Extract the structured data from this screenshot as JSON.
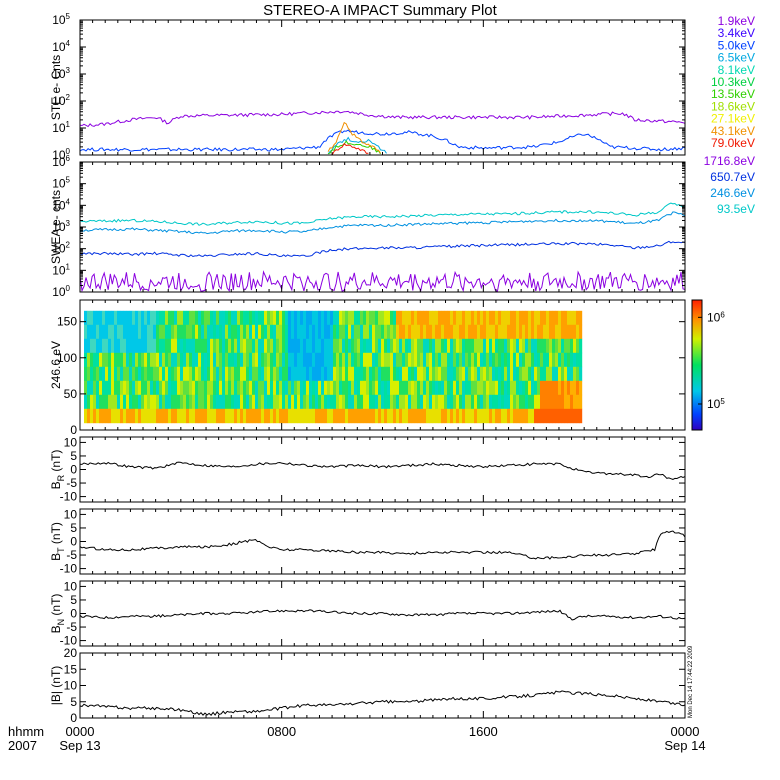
{
  "title": "STEREO-A IMPACT Summary Plot",
  "x_axis": {
    "row_label": [
      "hhmm",
      "2007"
    ],
    "ticks": [
      {
        "hour": 0,
        "label": "0000",
        "date": "Sep 13"
      },
      {
        "hour": 8,
        "label": "0800",
        "date": ""
      },
      {
        "hour": 16,
        "label": "1600",
        "date": ""
      },
      {
        "hour": 24,
        "label": "0000",
        "date": "Sep 14"
      }
    ],
    "range_hours": [
      0,
      24
    ]
  },
  "stamp": "Mon Dec 14 17:44:22 2009",
  "chart_data": [
    {
      "type": "line",
      "ylabel": "STE e- Cnts",
      "yscale": "log",
      "ylim_exp": [
        0,
        5
      ],
      "yticks": [
        {
          "e": 0,
          "b": "10",
          "s": "0"
        },
        {
          "e": 1,
          "b": "10",
          "s": "1"
        },
        {
          "e": 2,
          "b": "10",
          "s": "2"
        },
        {
          "e": 3,
          "b": "10",
          "s": "3"
        },
        {
          "e": 4,
          "b": "10",
          "s": "4"
        },
        {
          "e": 5,
          "b": "10",
          "s": "5"
        }
      ],
      "legend": [
        {
          "label": "1.9keV",
          "color": "#8b00e0"
        },
        {
          "label": "3.4keV",
          "color": "#3a00ff"
        },
        {
          "label": "5.0keV",
          "color": "#0040ff"
        },
        {
          "label": "6.5keV",
          "color": "#00a8e0"
        },
        {
          "label": "8.1keV",
          "color": "#00d8b0"
        },
        {
          "label": "10.3keV",
          "color": "#00d040"
        },
        {
          "label": "13.5keV",
          "color": "#30d000"
        },
        {
          "label": "18.6keV",
          "color": "#a0e000"
        },
        {
          "label": "27.1keV",
          "color": "#f0f000"
        },
        {
          "label": "43.1keV",
          "color": "#f09000"
        },
        {
          "label": "79.0keV",
          "color": "#f01800"
        }
      ],
      "series": [
        {
          "color": "#8b00e0",
          "x": [
            0,
            1,
            2,
            3,
            3.5,
            4,
            6,
            8,
            9.5,
            10.5,
            11.5,
            12.5,
            14,
            16,
            18,
            20,
            21.5,
            22,
            23,
            24
          ],
          "y": [
            12,
            14,
            20,
            25,
            15,
            28,
            30,
            32,
            38,
            42,
            30,
            25,
            25,
            25,
            25,
            30,
            35,
            20,
            18,
            16
          ]
        },
        {
          "color": "#0040ff",
          "x": [
            0,
            4,
            8,
            9.5,
            10,
            10.5,
            11,
            12,
            13,
            14,
            15,
            16,
            18,
            19,
            20,
            21,
            22,
            23,
            24
          ],
          "y": [
            1.6,
            1.6,
            1.6,
            2,
            5,
            8,
            7,
            6,
            7,
            5,
            2,
            1.8,
            2,
            3,
            6,
            2,
            1.8,
            1.6,
            1.8
          ]
        },
        {
          "color": "#00a8e0",
          "x": [
            9.8,
            10.2,
            10.6,
            11,
            11.4,
            11.8,
            12.2
          ],
          "y": [
            1,
            2.5,
            4,
            3,
            3.5,
            2,
            1
          ]
        },
        {
          "color": "#30d000",
          "x": [
            9.8,
            10.2,
            10.6,
            11,
            11.5,
            12
          ],
          "y": [
            1,
            2,
            3,
            2.5,
            2,
            1
          ]
        },
        {
          "color": "#f09000",
          "x": [
            9.8,
            10.2,
            10.5,
            10.8,
            11.2,
            11.6,
            12
          ],
          "y": [
            1,
            3,
            15,
            6,
            3,
            2,
            1
          ]
        },
        {
          "color": "#f01800",
          "x": [
            10,
            10.5,
            11,
            11.5
          ],
          "y": [
            1,
            2.5,
            1.8,
            1
          ]
        }
      ]
    },
    {
      "type": "line",
      "ylabel": "SWEA e- cnts",
      "yscale": "log",
      "ylim_exp": [
        0,
        6
      ],
      "yticks": [
        {
          "e": 0,
          "b": "10",
          "s": "0"
        },
        {
          "e": 1,
          "b": "10",
          "s": "1"
        },
        {
          "e": 2,
          "b": "10",
          "s": "2"
        },
        {
          "e": 3,
          "b": "10",
          "s": "3"
        },
        {
          "e": 4,
          "b": "10",
          "s": "4"
        },
        {
          "e": 5,
          "b": "10",
          "s": "5"
        },
        {
          "e": 6,
          "b": "10",
          "s": "6"
        }
      ],
      "legend": [
        {
          "label": "1716.8eV",
          "color": "#8b00e0"
        },
        {
          "label": "650.7eV",
          "color": "#0030e0"
        },
        {
          "label": "246.6eV",
          "color": "#0090e0"
        },
        {
          "label": "93.5eV",
          "color": "#00c8c8"
        }
      ],
      "series": [
        {
          "color": "#00c8c8",
          "x": [
            0,
            1,
            2,
            3,
            4,
            5,
            6,
            7,
            8,
            9,
            10,
            11,
            12,
            13,
            14,
            15,
            16,
            17,
            18,
            19,
            20,
            21,
            22,
            23,
            23.5,
            24
          ],
          "y": [
            1800,
            1900,
            2000,
            1800,
            1500,
            1300,
            1600,
            1800,
            1500,
            1500,
            2500,
            3000,
            3000,
            3200,
            3500,
            3800,
            4000,
            4000,
            4500,
            5000,
            5000,
            4500,
            3500,
            5000,
            12000,
            9000
          ]
        },
        {
          "color": "#0090e0",
          "x": [
            0,
            1,
            2,
            3,
            4,
            5,
            6,
            7,
            8,
            9,
            10,
            11,
            12,
            13,
            14,
            15,
            16,
            17,
            18,
            19,
            20,
            21,
            22,
            23,
            23.5,
            24
          ],
          "y": [
            700,
            750,
            800,
            700,
            600,
            500,
            650,
            700,
            600,
            600,
            1000,
            1200,
            1200,
            1300,
            1400,
            1500,
            1600,
            1700,
            1900,
            2000,
            2000,
            1800,
            1400,
            2000,
            4500,
            3500
          ]
        },
        {
          "color": "#0030e0",
          "x": [
            0,
            1,
            2,
            3,
            4,
            5,
            6,
            7,
            8,
            9,
            10,
            11,
            12,
            13,
            14,
            15,
            16,
            17,
            18,
            19,
            20,
            21,
            22,
            23,
            23.5,
            24
          ],
          "y": [
            60,
            60,
            55,
            60,
            50,
            45,
            55,
            60,
            45,
            45,
            90,
            100,
            110,
            110,
            120,
            130,
            140,
            150,
            160,
            170,
            170,
            150,
            110,
            140,
            220,
            180
          ]
        },
        {
          "color": "#8b00e0",
          "x": [
            0,
            4,
            8,
            12,
            16,
            20,
            24
          ],
          "y": [
            3,
            3,
            3,
            3,
            3,
            3,
            3
          ]
        }
      ]
    },
    {
      "type": "heatmap",
      "ylabel": "246.6 eV",
      "ylim": [
        0,
        180
      ],
      "yticks": [
        0,
        50,
        100,
        150
      ],
      "color_scale": {
        "ticks": [
          {
            "e": 5,
            "b": "10",
            "s": "5"
          },
          {
            "e": 6,
            "b": "10",
            "s": "6"
          }
        ],
        "range_exp": [
          4.7,
          6.2
        ]
      },
      "x_range_hours": [
        0,
        19.9
      ]
    },
    {
      "type": "line",
      "ylabel": "B",
      "ylabel_sub": "R",
      "ylabel_unit": " (nT)",
      "ylim": [
        -12,
        12
      ],
      "yticks": [
        -10,
        -5,
        0,
        5,
        10
      ],
      "series": [
        {
          "color": "#000000",
          "x": [
            0,
            1,
            2,
            3,
            4,
            5,
            6,
            7,
            8,
            9,
            10,
            11,
            12,
            13,
            14,
            15,
            16,
            17,
            18,
            19,
            20,
            21,
            22,
            22.5,
            23,
            23.5,
            24
          ],
          "y": [
            2,
            2.5,
            1,
            0.5,
            2.5,
            1.5,
            1,
            2,
            2.5,
            1.5,
            1,
            1.5,
            1,
            1.5,
            2,
            1.5,
            1,
            1.5,
            2,
            2,
            -1,
            -1.5,
            -2,
            -3,
            -1.5,
            -4,
            -2.5
          ]
        }
      ]
    },
    {
      "type": "line",
      "ylabel": "B",
      "ylabel_sub": "T",
      "ylabel_unit": " (nT)",
      "ylim": [
        -12,
        12
      ],
      "yticks": [
        -10,
        -5,
        0,
        5,
        10
      ],
      "series": [
        {
          "color": "#000000",
          "x": [
            0,
            1,
            2,
            3,
            4,
            5,
            6,
            6.5,
            7,
            7.5,
            8,
            9,
            10,
            11,
            12,
            13,
            14,
            15,
            16,
            17,
            18,
            19,
            20,
            21,
            22,
            22.8,
            23,
            23.5,
            24
          ],
          "y": [
            -2,
            -3,
            -3,
            -2.5,
            -2,
            -2,
            -1,
            0,
            0.5,
            -2,
            -3,
            -3,
            -3.5,
            -4,
            -4,
            -4.5,
            -4,
            -4,
            -4,
            -4,
            -6,
            -6,
            -5,
            -5,
            -4.5,
            -3,
            3,
            4,
            2
          ]
        }
      ]
    },
    {
      "type": "line",
      "ylabel": "B",
      "ylabel_sub": "N",
      "ylabel_unit": " (nT)",
      "ylim": [
        -12,
        12
      ],
      "yticks": [
        -10,
        -5,
        0,
        5,
        10
      ],
      "series": [
        {
          "color": "#000000",
          "x": [
            0,
            1,
            2,
            3,
            4,
            5,
            6,
            7,
            8,
            9,
            10,
            11,
            12,
            13,
            14,
            15,
            16,
            17,
            18,
            19,
            19.5,
            20,
            21,
            22,
            23,
            24
          ],
          "y": [
            -1,
            -1.5,
            -1,
            -1,
            -0.5,
            0,
            0,
            0.5,
            1,
            1,
            0.5,
            0,
            0,
            -0.5,
            -0.5,
            0,
            0,
            0,
            0.5,
            1,
            -2,
            -1,
            -1,
            -1.5,
            -1,
            -2
          ]
        }
      ]
    },
    {
      "type": "line",
      "ylabel": "|B|",
      "ylabel_sub": "",
      "ylabel_unit": " (nT)",
      "ylim": [
        0,
        20
      ],
      "yticks": [
        0,
        5,
        10,
        15,
        20
      ],
      "series": [
        {
          "color": "#000000",
          "x": [
            0,
            1,
            2,
            3,
            4,
            5,
            6,
            7,
            8,
            9,
            10,
            11,
            12,
            13,
            14,
            15,
            16,
            17,
            18,
            19,
            20,
            21,
            22,
            23,
            24
          ],
          "y": [
            4,
            3.5,
            3,
            3,
            2.5,
            1,
            2,
            2,
            3,
            4,
            4,
            4.5,
            5,
            5,
            5.5,
            6,
            6,
            6.5,
            7,
            8,
            7.5,
            7,
            6,
            5,
            4
          ]
        }
      ]
    }
  ]
}
